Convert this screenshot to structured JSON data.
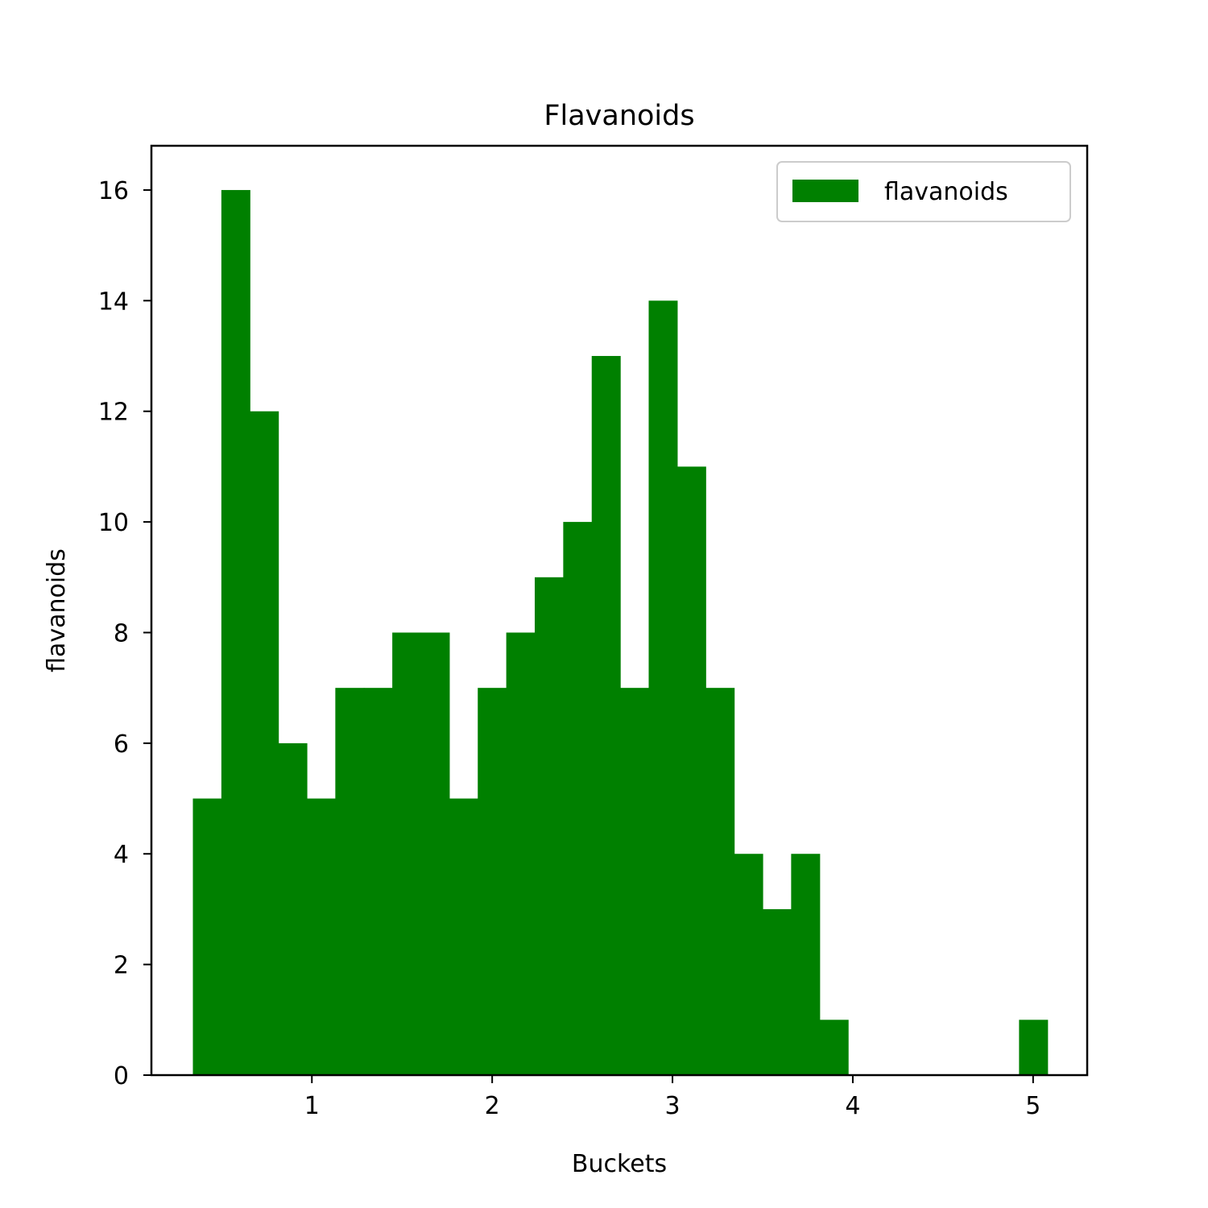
{
  "chart_data": {
    "type": "bar",
    "title": "Flavanoids",
    "xlabel": "Buckets",
    "ylabel": "flavanoids",
    "xlim": [
      0.11,
      5.3
    ],
    "ylim": [
      0,
      16.8
    ],
    "xticks": [
      1,
      2,
      3,
      4,
      5
    ],
    "yticks": [
      0,
      2,
      4,
      6,
      8,
      10,
      12,
      14,
      16
    ],
    "grid": false,
    "legend_position": "top-right",
    "bar_color": "#008000",
    "series": [
      {
        "name": "flavanoids",
        "bin_start": 0.34,
        "bin_width": 0.158,
        "values": [
          5,
          16,
          12,
          6,
          5,
          7,
          7,
          8,
          8,
          5,
          7,
          8,
          9,
          10,
          13,
          7,
          14,
          11,
          7,
          4,
          3,
          4,
          1,
          0,
          0,
          0,
          0,
          0,
          0,
          1
        ]
      }
    ]
  }
}
